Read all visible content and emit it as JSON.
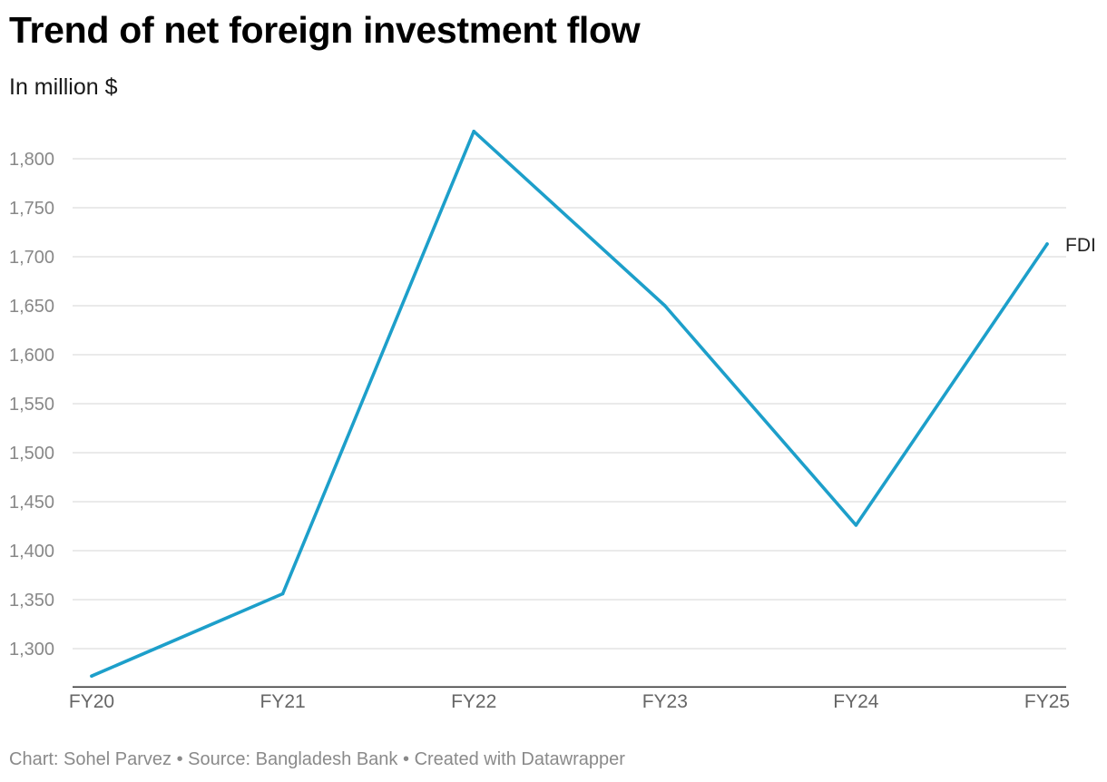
{
  "header": {
    "title": "Trend of net foreign investment flow",
    "subtitle": "In million $"
  },
  "footer": {
    "credit_prefix": "Chart:",
    "author": "Sohel Parvez",
    "separator": "•",
    "source_prefix": "Source:",
    "source": "Bangladesh Bank",
    "created_with": "Created with Datawrapper"
  },
  "colors": {
    "line": "#1d9fca",
    "grid": "#dddddd",
    "axis": "#333333",
    "tick_label": "#888888",
    "x_tick_label": "#666666"
  },
  "chart_data": {
    "type": "line",
    "title": "Trend of net foreign investment flow",
    "subtitle": "In million $",
    "xlabel": "",
    "ylabel": "In million $",
    "categories": [
      "FY20",
      "FY21",
      "FY22",
      "FY23",
      "FY24",
      "FY25"
    ],
    "series": [
      {
        "name": "FDI",
        "values": [
          1272,
          1356,
          1828,
          1650,
          1426,
          1713
        ]
      }
    ],
    "yticks": [
      1300,
      1350,
      1400,
      1450,
      1500,
      1550,
      1600,
      1650,
      1700,
      1750,
      1800
    ],
    "ylim": [
      1272,
      1828
    ],
    "grid": true,
    "legend": "direct label at line end (right)"
  }
}
